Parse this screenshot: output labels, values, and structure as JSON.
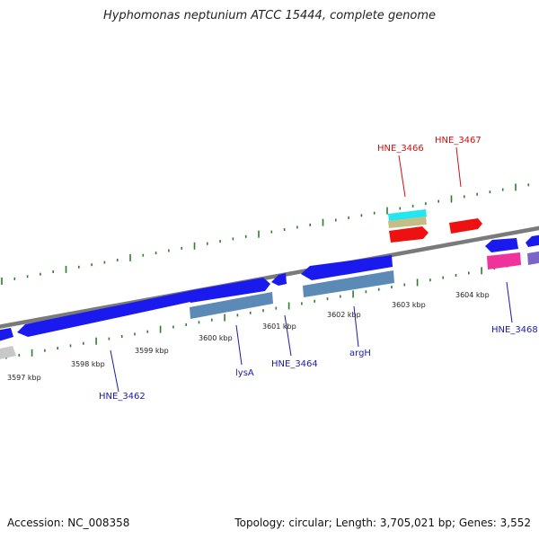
{
  "title": "Hyphomonas neptunium ATCC 15444, complete genome",
  "footer": {
    "accession": "Accession: NC_008358",
    "summary": "Topology: circular; Length: 3,705,021 bp; Genes: 3,552"
  },
  "colors": {
    "backbone": "#7a7a7a",
    "tick": "#2e7d2e",
    "gene_blue": "#1a1aee",
    "gene_red": "#ee1111",
    "cds_steel": "#5a8ab5",
    "rna_cyan": "#22e6f0",
    "rna_khaki": "#c4be86",
    "cds_pink": "#f0339c",
    "cds_purple": "#7a66c8",
    "cds_grey": "#c8c8c8",
    "label_blue": "#1a1ab0",
    "label_red": "#d01010"
  },
  "axis": {
    "kbp_labels": [
      "3597 kbp",
      "3598 kbp",
      "3599 kbp",
      "3600 kbp",
      "3601 kbp",
      "3602 kbp",
      "3603 kbp",
      "3604 kbp"
    ]
  },
  "gene_labels": {
    "blue": [
      "HNE_3462",
      "lysA",
      "HNE_3464",
      "argH",
      "HNE_3468"
    ],
    "red": [
      "HNE_3466",
      "HNE_3467"
    ]
  }
}
